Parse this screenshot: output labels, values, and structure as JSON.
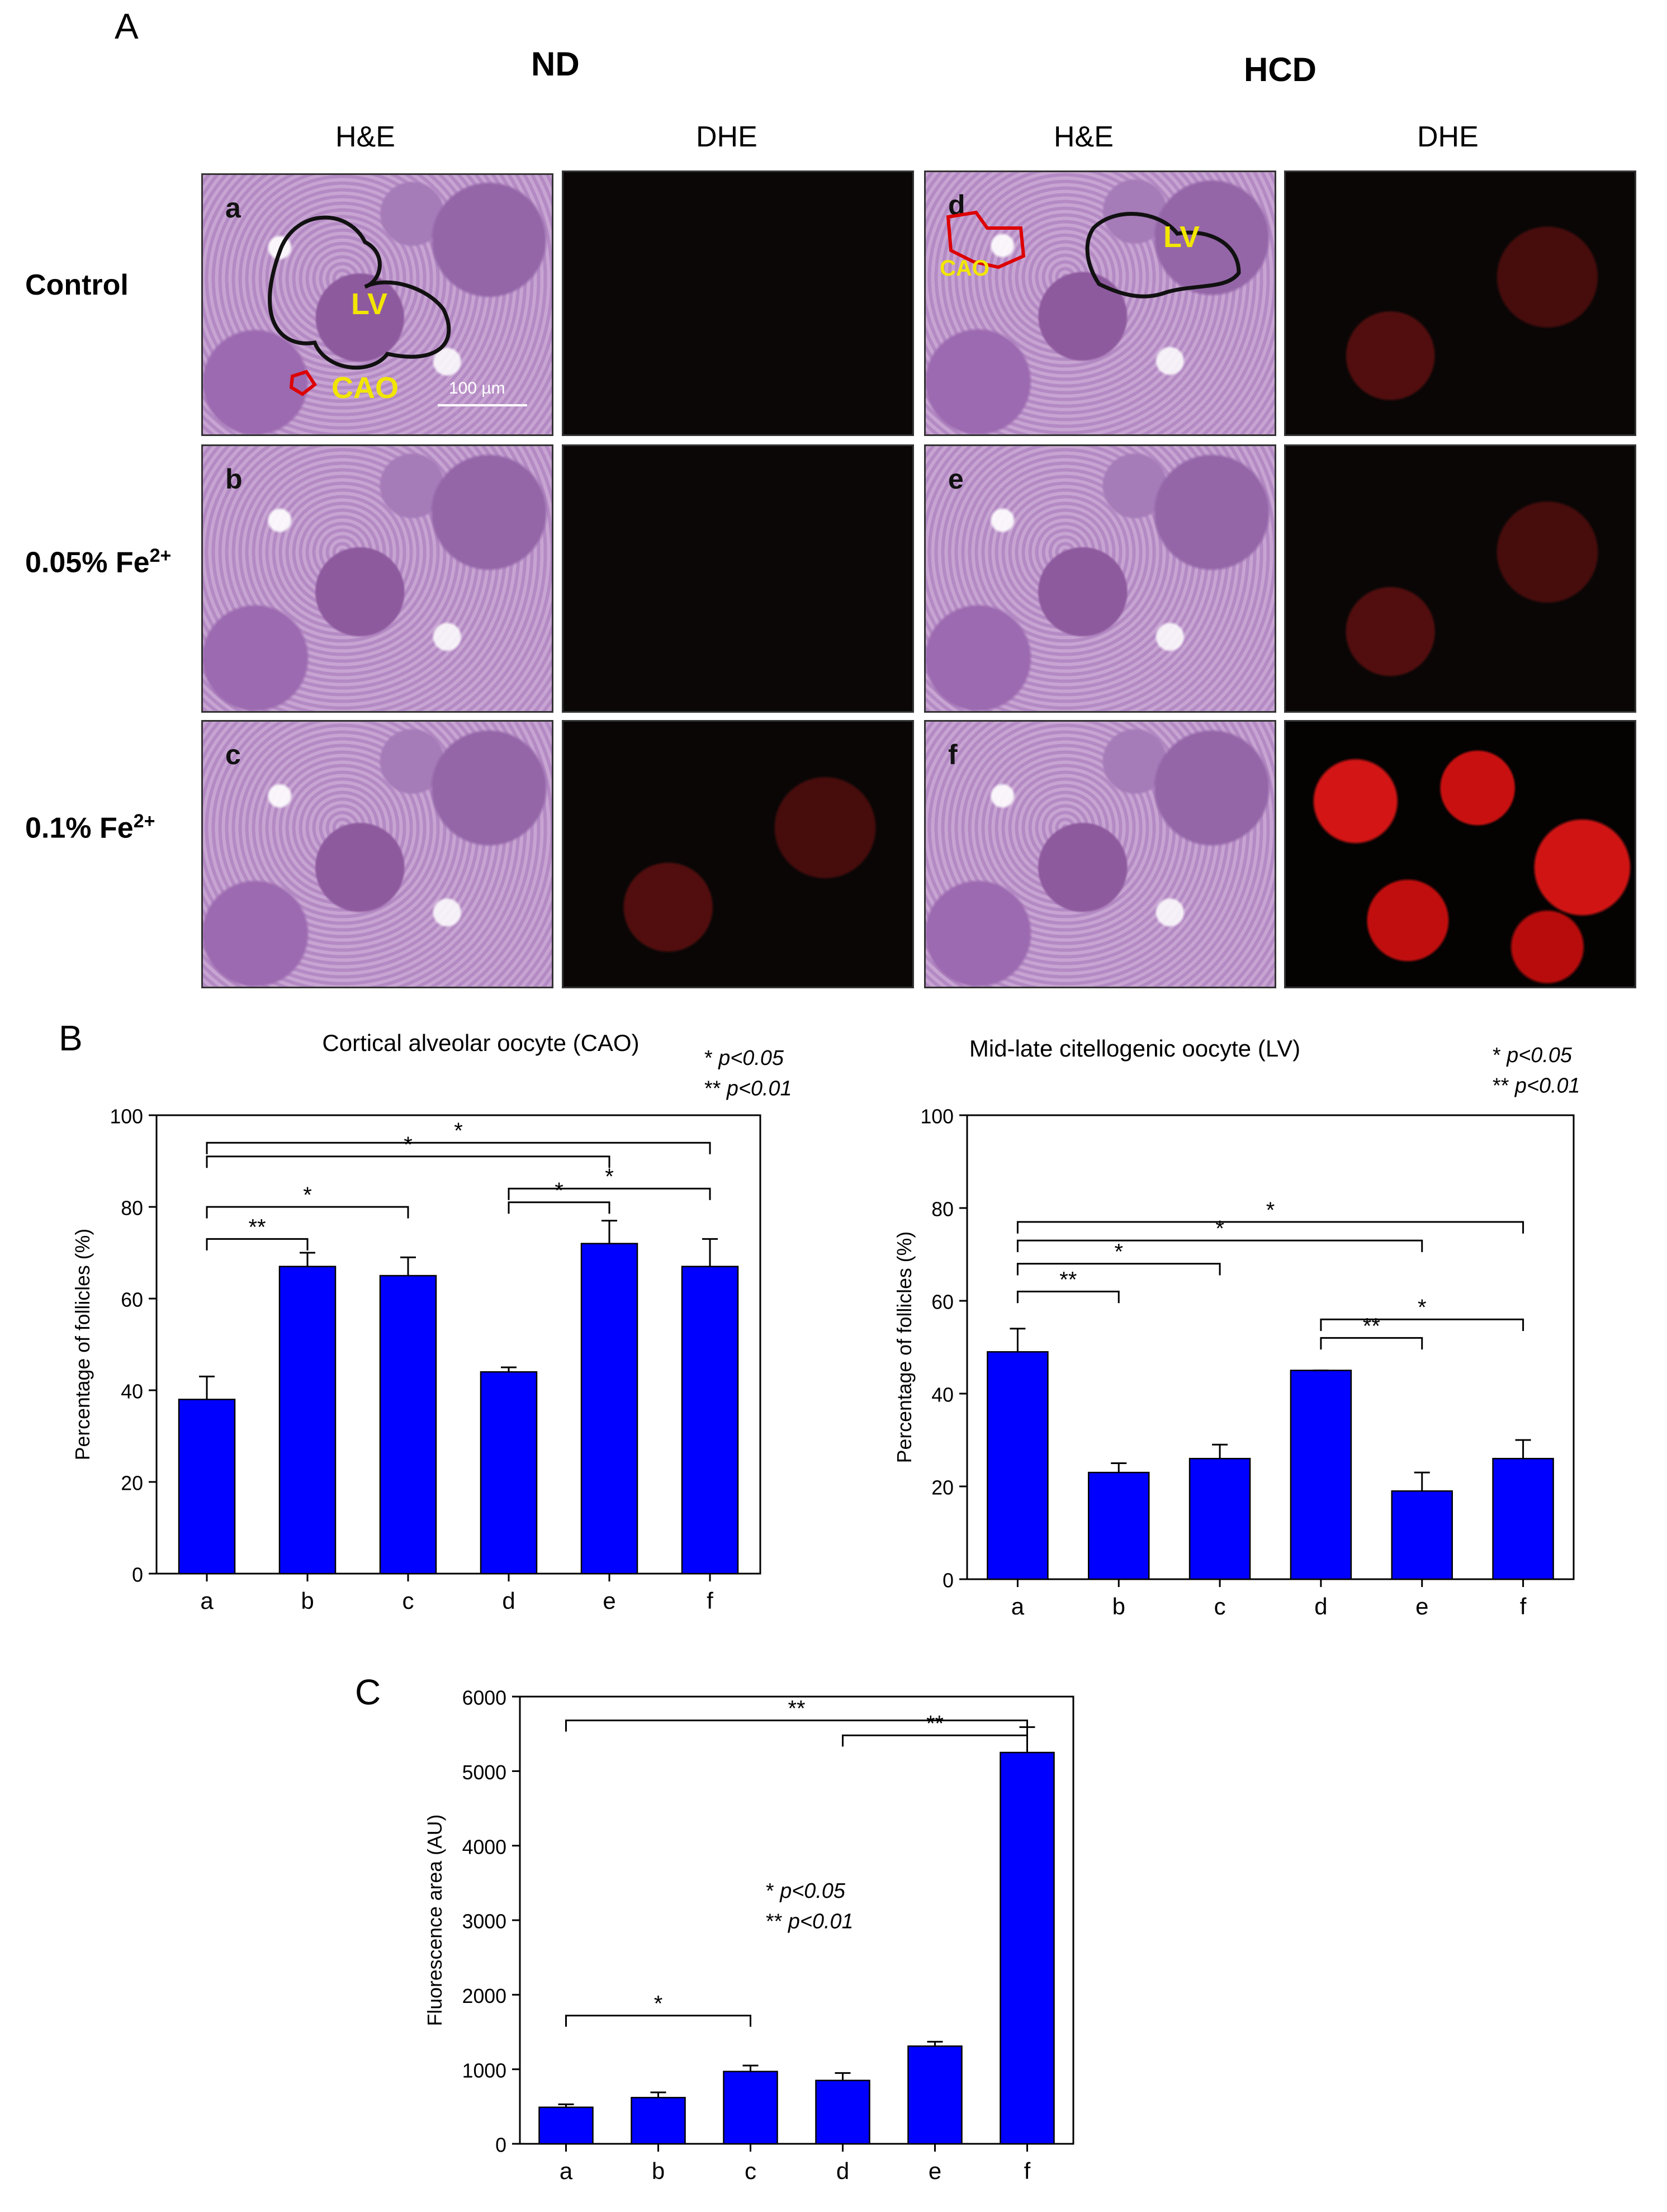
{
  "panel_labels": {
    "A": "A",
    "B": "B",
    "C": "C"
  },
  "panel_a": {
    "group_nd": "ND",
    "group_hcd": "HCD",
    "col_he": "H&E",
    "col_dhe": "DHE",
    "row_control": "Control",
    "row_005_prefix": "0.05% Fe",
    "row_01_prefix": "0.1% Fe",
    "superscript": "2+",
    "subpanels": [
      "a",
      "b",
      "c",
      "d",
      "e",
      "f"
    ],
    "label_lv": "LV",
    "label_cao": "CAO",
    "scale_bar": "100 µm"
  },
  "chart_data": [
    {
      "type": "bar",
      "title": "Cortical alveolar oocyte (CAO)",
      "ylabel": "Percentage of follicles (%)",
      "categories": [
        "a",
        "b",
        "c",
        "d",
        "e",
        "f"
      ],
      "values": [
        38,
        67,
        65,
        44,
        72,
        67
      ],
      "errors": [
        5,
        3,
        4,
        1,
        5,
        6
      ],
      "ylim": [
        0,
        100
      ],
      "yticks": [
        0,
        20,
        40,
        60,
        80,
        100
      ],
      "color": "#0000ff",
      "legend": [
        "*  p<0.05",
        "**  p<0.01"
      ],
      "significance": [
        {
          "from": "a",
          "to": "b",
          "label": "**"
        },
        {
          "from": "a",
          "to": "c",
          "label": "*"
        },
        {
          "from": "a",
          "to": "e",
          "label": "*"
        },
        {
          "from": "a",
          "to": "f",
          "label": "*"
        },
        {
          "from": "d",
          "to": "e",
          "label": "*"
        },
        {
          "from": "d",
          "to": "f",
          "label": "*"
        }
      ]
    },
    {
      "type": "bar",
      "title": "Mid-late citellogenic oocyte (LV)",
      "ylabel": "Percentage of follicles (%)",
      "categories": [
        "a",
        "b",
        "c",
        "d",
        "e",
        "f"
      ],
      "values": [
        49,
        23,
        26,
        45,
        19,
        26
      ],
      "errors": [
        5,
        2,
        3,
        0,
        4,
        4
      ],
      "ylim": [
        0,
        100
      ],
      "yticks": [
        0,
        20,
        40,
        60,
        80,
        100
      ],
      "color": "#0000ff",
      "legend": [
        "*  p<0.05",
        "**  p<0.01"
      ],
      "significance": [
        {
          "from": "a",
          "to": "b",
          "label": "**"
        },
        {
          "from": "a",
          "to": "c",
          "label": "*"
        },
        {
          "from": "a",
          "to": "e",
          "label": "*"
        },
        {
          "from": "a",
          "to": "f",
          "label": "*"
        },
        {
          "from": "d",
          "to": "e",
          "label": "**"
        },
        {
          "from": "d",
          "to": "f",
          "label": "*"
        }
      ]
    },
    {
      "type": "bar",
      "title": "",
      "ylabel": "Fluorescence area (AU)",
      "categories": [
        "a",
        "b",
        "c",
        "d",
        "e",
        "f"
      ],
      "values": [
        490,
        620,
        970,
        850,
        1310,
        5250
      ],
      "errors": [
        40,
        70,
        80,
        100,
        60,
        340
      ],
      "ylim": [
        0,
        6000
      ],
      "yticks": [
        0,
        1000,
        2000,
        3000,
        4000,
        5000,
        6000
      ],
      "color": "#0000ff",
      "legend": [
        "*  p<0.05",
        "**  p<0.01"
      ],
      "significance": [
        {
          "from": "a",
          "to": "c",
          "label": "*"
        },
        {
          "from": "a",
          "to": "f",
          "label": "**"
        },
        {
          "from": "d",
          "to": "f",
          "label": "**"
        }
      ]
    }
  ]
}
